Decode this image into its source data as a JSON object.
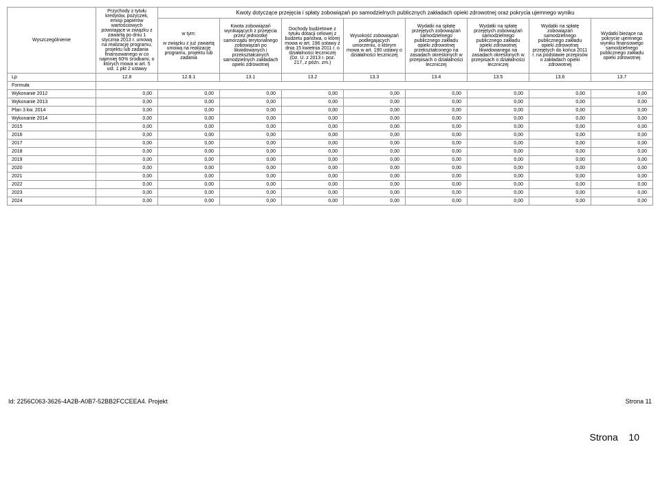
{
  "main_header": "Kwoty dotyczące przejęcia i spłaty zobowiązań po samodzielnych publicznych zakładach opieki zdrowotnej oraz pokrycia ujemnego wyniku",
  "columns": {
    "c0": "Wyszczególnienie",
    "c1": "Przychody z tytułu kredytów, pożyczek, emisji papierów wartościowych powstające w związku z zawartą po dniu 1 stycznia 2013 r. umową na realizację programu, projektu lub zadania finansowanego w co najmniej 60% środkami, o których mowa w art. 5 ust. 1 pkt 2 ustawy",
    "c2_top": "w tym:",
    "c2": "w związku z już zawartą umową na realizację programu, projektu lub zadania",
    "c3": "Kwota zobowiązań wynikających z przejęcia przez jednostkę samorządu terytorialnego zobowiązań po likwidowanych i przekształcanych samodzielnych zakładach opieki zdrowotnej",
    "c4": "Dochody budżetowe z tytułu dotacji celowej z budżetu państwa, o której mowa w art. 196 ustawy z dnia 15 kwietnia 2011 r. o działalności leczniczej (Dz. U. z 2013 r. poz. 217, z późn. zm.)",
    "c5": "Wysokość zobowiązań podlegających umorzeniu, o którym mowa w art. 190 ustawy o działalności leczniczej",
    "c6": "Wydatki na spłatę przejętych zobowiązań samodzielnego publicznego zakładu opieki zdrowotnej przekształconego na zasadach określonych w przepisach o działalności leczniczej",
    "c7": "Wydatki na spłatę przejętych zobowiązań samodzielnego publicznego zakładu opieki zdrowotnej likwidowanego na zasadach określonych w przepisach o działalności leczniczej",
    "c8": "Wydatki na spłatę zobowiązań samodzielnego publicznego zakładu opieki zdrowotnej przejętych do końca 2011 r. na podstawie przepisów o zakładach opieki zdrowotnej",
    "c9": "Wydatki bieżące na pokrycie ujemnego wyniku finansowego samodzielnego publicznego zakładu opieki zdrowotnej"
  },
  "lp_row": {
    "label": "Lp",
    "v1": "12.8",
    "v2": "12.8.1",
    "v3": "13.1",
    "v4": "13.2",
    "v5": "13.3",
    "v6": "13.4",
    "v7": "13.5",
    "v8": "13.6",
    "v9": "13.7"
  },
  "formula_label": "Formuła",
  "rows": [
    {
      "label": "Wykonanie 2012"
    },
    {
      "label": "Wykonanie 2013"
    },
    {
      "label": "Plan 3 kw. 2014"
    },
    {
      "label": "Wykonanie 2014"
    },
    {
      "label": "2015"
    },
    {
      "label": "2016"
    },
    {
      "label": "2017"
    },
    {
      "label": "2018"
    },
    {
      "label": "2019"
    },
    {
      "label": "2020"
    },
    {
      "label": "2021"
    },
    {
      "label": "2022"
    },
    {
      "label": "2023"
    },
    {
      "label": "2024"
    }
  ],
  "cell_value": "0,00",
  "page_label": "Strona",
  "page_num": "10",
  "footer_left": "Id: 2256C063-3626-4A2B-A0B7-52BB2FCCEEA4. Projekt",
  "footer_right": "Strona 11"
}
